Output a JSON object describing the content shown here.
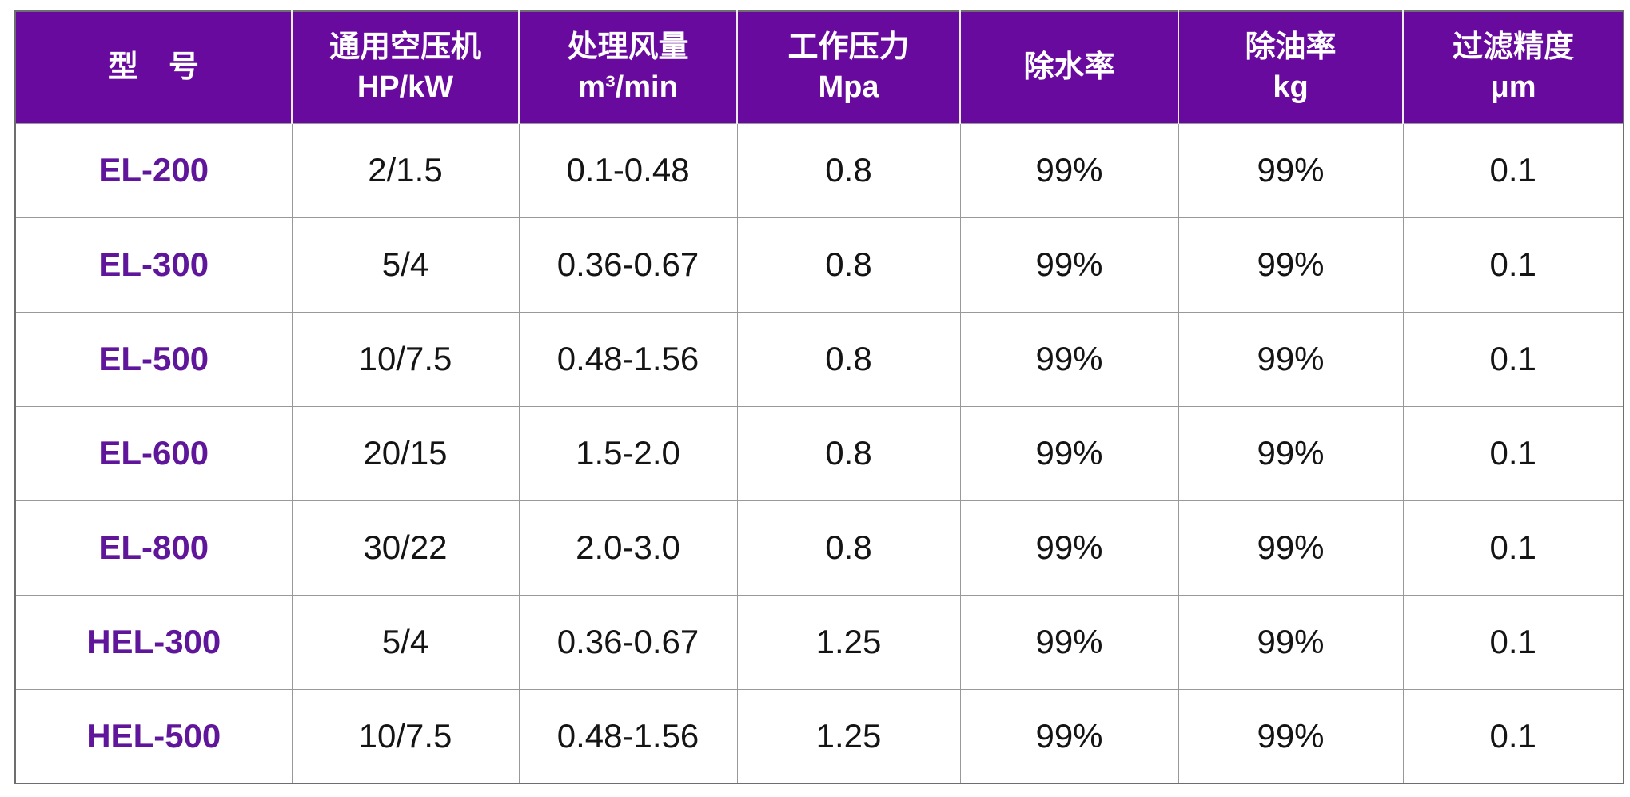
{
  "colors": {
    "header_bg": "#680A9E",
    "header_text": "#ffffff",
    "model_text": "#5F169B",
    "body_text": "#141414",
    "grid_line": "#999999",
    "outer_border": "#6e6e6e"
  },
  "table": {
    "columns": [
      {
        "line1": "型　号",
        "line2": ""
      },
      {
        "line1": "通用空压机",
        "line2": "HP/kW"
      },
      {
        "line1": "处理风量",
        "line2": "m³/min"
      },
      {
        "line1": "工作压力",
        "line2": "Mpa"
      },
      {
        "line1": "除水率",
        "line2": ""
      },
      {
        "line1": "除油率",
        "line2": "kg"
      },
      {
        "line1": "过滤精度",
        "line2": "μm"
      }
    ],
    "rows": [
      {
        "model": "EL-200",
        "hp_kw": "2/1.5",
        "flow": "0.1-0.48",
        "pressure": "0.8",
        "water": "99%",
        "oil": "99%",
        "precision": "0.1"
      },
      {
        "model": "EL-300",
        "hp_kw": "5/4",
        "flow": "0.36-0.67",
        "pressure": "0.8",
        "water": "99%",
        "oil": "99%",
        "precision": "0.1"
      },
      {
        "model": "EL-500",
        "hp_kw": "10/7.5",
        "flow": "0.48-1.56",
        "pressure": "0.8",
        "water": "99%",
        "oil": "99%",
        "precision": "0.1"
      },
      {
        "model": "EL-600",
        "hp_kw": "20/15",
        "flow": "1.5-2.0",
        "pressure": "0.8",
        "water": "99%",
        "oil": "99%",
        "precision": "0.1"
      },
      {
        "model": "EL-800",
        "hp_kw": "30/22",
        "flow": "2.0-3.0",
        "pressure": "0.8",
        "water": "99%",
        "oil": "99%",
        "precision": "0.1"
      },
      {
        "model": "HEL-300",
        "hp_kw": "5/4",
        "flow": "0.36-0.67",
        "pressure": "1.25",
        "water": "99%",
        "oil": "99%",
        "precision": "0.1"
      },
      {
        "model": "HEL-500",
        "hp_kw": "10/7.5",
        "flow": "0.48-1.56",
        "pressure": "1.25",
        "water": "99%",
        "oil": "99%",
        "precision": "0.1"
      }
    ]
  }
}
